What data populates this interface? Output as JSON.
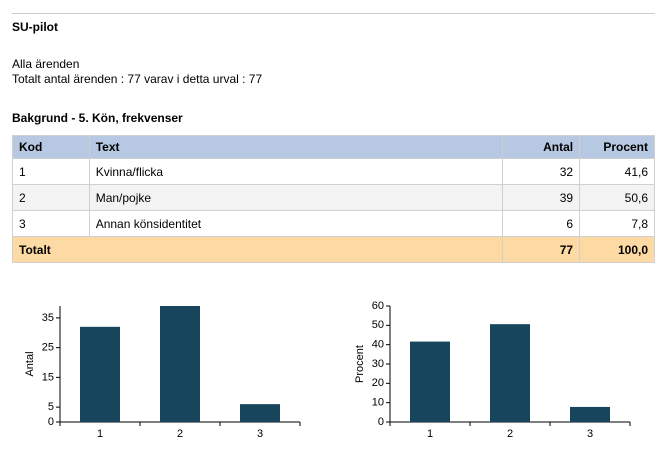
{
  "header": {
    "title": "SU-pilot",
    "subtitle": "Alla ärenden",
    "summary": "Totalt antal ärenden : 77 varav i detta urval : 77"
  },
  "section_title": "Bakgrund - 5. Kön, frekvenser",
  "table": {
    "columns": [
      "Kod",
      "Text",
      "Antal",
      "Procent"
    ],
    "rows": [
      [
        "1",
        "Kvinna/flicka",
        "32",
        "41,6"
      ],
      [
        "2",
        "Man/pojke",
        "39",
        "50,6"
      ],
      [
        "3",
        "Annan könsidentitet",
        "6",
        "7,8"
      ]
    ],
    "total": [
      "Totalt",
      "77",
      "100,0"
    ]
  },
  "chart_data": [
    {
      "type": "bar",
      "ylabel": "Antal",
      "categories": [
        "1",
        "2",
        "3"
      ],
      "values": [
        32,
        39,
        6
      ],
      "color": "#17455c",
      "ylim": [
        0,
        39
      ],
      "yticks": [
        0,
        5,
        15,
        25,
        35
      ]
    },
    {
      "type": "bar",
      "ylabel": "Procent",
      "categories": [
        "1",
        "2",
        "3"
      ],
      "values": [
        41.6,
        50.6,
        7.8
      ],
      "color": "#17455c",
      "ylim": [
        0,
        60
      ],
      "yticks": [
        0,
        10,
        20,
        30,
        40,
        50,
        60
      ]
    }
  ]
}
